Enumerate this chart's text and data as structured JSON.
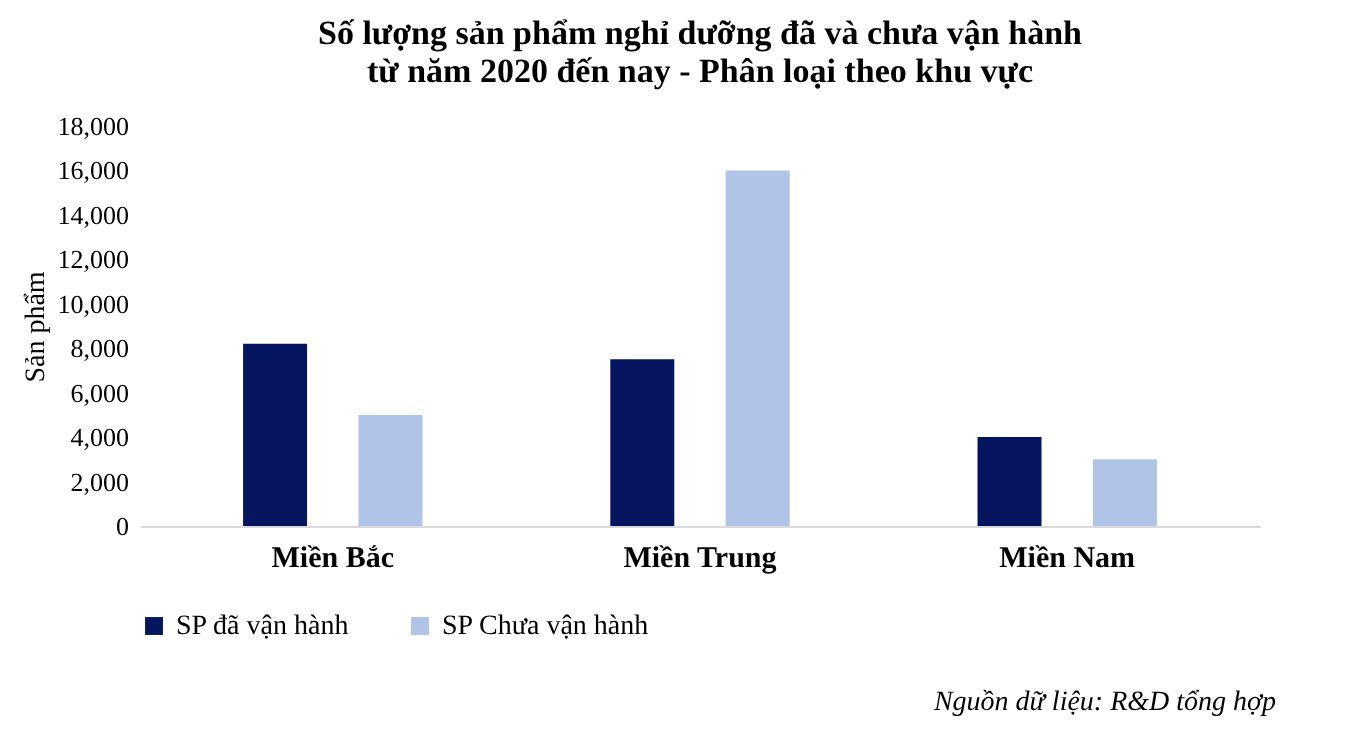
{
  "chart_data": {
    "type": "bar",
    "title": "Số lượng sản phẩm nghỉ dưỡng đã và chưa vận hành\ntừ năm 2020 đến nay - Phân loại theo khu vực",
    "ylabel": "Sản phẩm",
    "categories": [
      "Miền Bắc",
      "Miền Trung",
      "Miền Nam"
    ],
    "series": [
      {
        "name": "SP đã vận hành",
        "color": "#05155f",
        "values": [
          8200,
          7500,
          4000
        ]
      },
      {
        "name": "SP Chưa vận hành",
        "color": "#b0c4e8",
        "values": [
          5000,
          16000,
          3000
        ]
      }
    ],
    "ylim": [
      0,
      18000
    ],
    "yticks": [
      0,
      {
        "value": 2000,
        "label": "2,000"
      },
      {
        "value": 4000,
        "label": "4,000"
      },
      {
        "value": 6000,
        "label": "6,000"
      },
      {
        "value": 8000,
        "label": "8,000"
      },
      {
        "value": 10000,
        "label": "10,000"
      },
      {
        "value": 12000,
        "label": "12,000"
      },
      {
        "value": 14000,
        "label": "14,000"
      },
      {
        "value": 16000,
        "label": "16,000"
      },
      {
        "value": 18000,
        "label": "18,000"
      }
    ],
    "grid": false,
    "legend": "bottom",
    "annotations": [
      "Nguồn dữ liệu: R&D tổng hợp"
    ]
  }
}
